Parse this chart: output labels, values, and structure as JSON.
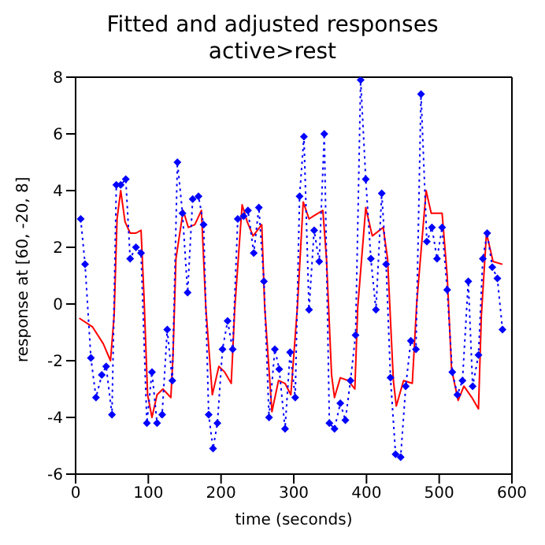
{
  "chart_data": {
    "type": "line",
    "title": "Fitted and adjusted responses",
    "subtitle": "active>rest",
    "xlabel": "time (seconds)",
    "ylabel": "response at [60, -20, 8]",
    "xlim": [
      0,
      600
    ],
    "xticks": [
      0,
      100,
      200,
      300,
      400,
      500,
      600
    ],
    "ylim": [
      -6,
      8
    ],
    "yticks": [
      -6,
      -4,
      -2,
      0,
      2,
      4,
      6,
      8
    ],
    "series": [
      {
        "color": "#ff0000",
        "marker": "none",
        "line_style": "solid",
        "x": [
          5,
          23,
          38,
          48,
          53,
          57,
          62,
          68,
          75,
          83,
          90,
          94,
          99,
          105,
          112,
          120,
          131,
          134,
          138,
          148,
          155,
          164,
          173,
          179,
          188,
          197,
          205,
          214,
          219,
          229,
          236,
          244,
          256,
          260,
          270,
          279,
          288,
          296,
          305,
          313,
          321,
          327,
          340,
          345,
          352,
          356,
          364,
          375,
          384,
          388,
          399,
          408,
          423,
          429,
          437,
          441,
          451,
          463,
          469,
          482,
          489,
          504,
          511,
          517,
          526,
          534,
          545,
          554,
          558,
          565,
          574,
          587
        ],
        "values": [
          -0.5,
          -0.8,
          -1.4,
          -2.0,
          -0.4,
          3.0,
          4.0,
          2.9,
          2.5,
          2.5,
          2.6,
          0.3,
          -3.2,
          -4.0,
          -3.2,
          -3.0,
          -3.3,
          -1.8,
          1.6,
          3.3,
          2.7,
          2.8,
          3.3,
          -0.1,
          -3.2,
          -2.2,
          -2.4,
          -2.8,
          -0.1,
          3.5,
          2.9,
          2.4,
          2.8,
          -0.1,
          -3.8,
          -2.7,
          -2.8,
          -3.2,
          -0.1,
          3.6,
          3.0,
          3.1,
          3.3,
          1.6,
          -2.5,
          -3.3,
          -2.6,
          -2.7,
          -3.0,
          -0.1,
          3.4,
          2.4,
          2.7,
          1.6,
          -2.7,
          -3.6,
          -2.7,
          -2.8,
          0.0,
          4.0,
          3.2,
          3.2,
          1.0,
          -2.3,
          -3.4,
          -2.9,
          -3.3,
          -3.7,
          -0.4,
          2.5,
          1.5,
          1.4
        ]
      },
      {
        "color": "#0000ff",
        "marker": "diamond",
        "line_style": "dotted",
        "x": [
          7,
          13,
          21,
          28,
          36,
          42,
          50,
          56,
          62,
          69,
          75,
          83,
          90,
          98,
          105,
          112,
          119,
          126,
          133,
          140,
          147,
          154,
          161,
          169,
          176,
          183,
          189,
          195,
          202,
          209,
          216,
          223,
          231,
          237,
          245,
          252,
          259,
          266,
          274,
          280,
          288,
          295,
          302,
          308,
          314,
          321,
          328,
          335,
          342,
          349,
          356,
          364,
          371,
          378,
          385,
          392,
          399,
          406,
          413,
          421,
          427,
          433,
          440,
          447,
          454,
          461,
          468,
          475,
          483,
          490,
          497,
          504,
          511,
          518,
          525,
          532,
          540,
          546,
          554,
          560,
          566,
          573,
          580,
          587
        ],
        "values": [
          3.0,
          1.4,
          -1.9,
          -3.3,
          -2.5,
          -2.2,
          -3.9,
          4.2,
          4.2,
          4.4,
          1.6,
          2.0,
          1.8,
          -4.2,
          -2.4,
          -4.2,
          -3.9,
          -0.9,
          -2.7,
          5.0,
          3.2,
          0.4,
          3.7,
          3.8,
          2.8,
          -3.9,
          -5.1,
          -4.2,
          -1.6,
          -0.6,
          -1.6,
          3.0,
          3.1,
          3.3,
          1.8,
          3.4,
          0.8,
          -4.0,
          -1.6,
          -2.3,
          -4.4,
          -1.7,
          -3.3,
          3.8,
          5.9,
          -0.2,
          2.6,
          1.5,
          6.0,
          -4.2,
          -4.4,
          -3.5,
          -4.1,
          -2.7,
          -1.1,
          7.9,
          4.4,
          1.6,
          -0.2,
          3.9,
          1.4,
          -2.6,
          -5.3,
          -5.4,
          -2.9,
          -1.3,
          -1.6,
          7.4,
          2.2,
          2.7,
          1.6,
          2.7,
          0.5,
          -2.4,
          -3.2,
          -2.7,
          0.8,
          -2.9,
          -1.8,
          1.6,
          2.5,
          1.3,
          0.9,
          -0.9
        ]
      }
    ]
  }
}
